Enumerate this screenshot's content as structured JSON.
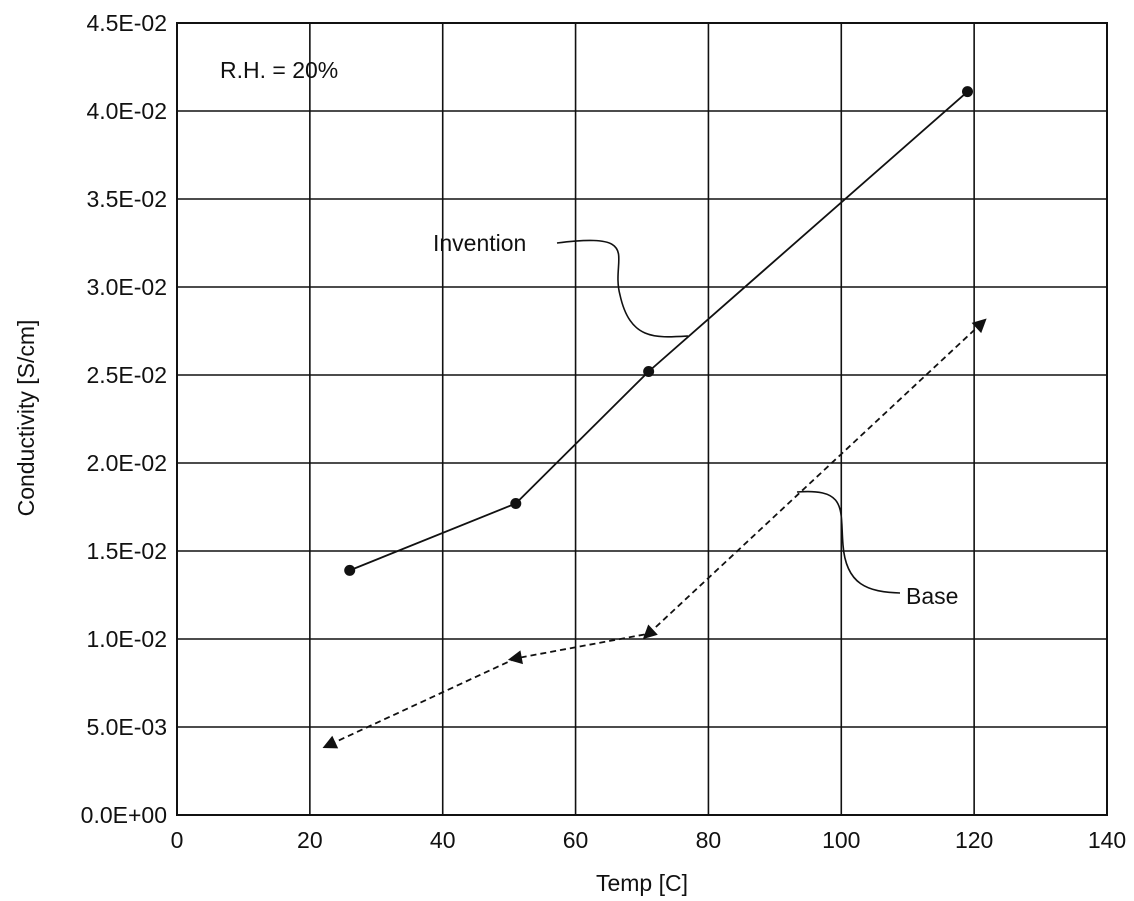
{
  "chart_data": {
    "type": "line",
    "xlabel": "Temp [C]",
    "ylabel": "Conductivity [S/cm]",
    "xlim": [
      0,
      140
    ],
    "ylim": [
      0,
      0.045
    ],
    "x_ticks": [
      0,
      20,
      40,
      60,
      80,
      100,
      120,
      140
    ],
    "x_tick_labels": [
      "0",
      "20",
      "40",
      "60",
      "80",
      "100",
      "120",
      "140"
    ],
    "y_ticks": [
      0,
      0.005,
      0.01,
      0.015,
      0.02,
      0.025,
      0.03,
      0.035,
      0.04,
      0.045
    ],
    "y_tick_labels": [
      "0.0E+00",
      "5.0E-03",
      "1.0E-02",
      "1.5E-02",
      "2.0E-02",
      "2.5E-02",
      "3.0E-02",
      "3.5E-02",
      "4.0E-02",
      "4.5E-02"
    ],
    "grid": true,
    "annotation": "R.H. = 20%",
    "series": [
      {
        "name": "Invention",
        "marker": "circle",
        "line_style": "solid",
        "color": "#111111",
        "x": [
          26,
          51,
          71,
          119
        ],
        "y": [
          0.0139,
          0.0177,
          0.0252,
          0.0411
        ]
      },
      {
        "name": "Base",
        "marker": "triangle",
        "line_style": "dashed",
        "color": "#111111",
        "x": [
          23,
          51,
          71,
          121
        ],
        "y": [
          0.004,
          0.0089,
          0.0103,
          0.0279
        ]
      }
    ]
  }
}
